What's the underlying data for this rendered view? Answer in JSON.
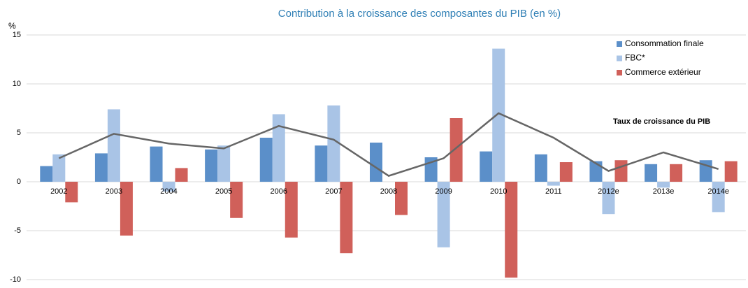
{
  "chart_data": {
    "type": "bar",
    "title": "Contribution à la croissance des composantes du PIB (en %)",
    "y_label": "%",
    "categories": [
      "2002",
      "2003",
      "2004",
      "2005",
      "2006",
      "2007",
      "2008",
      "2009",
      "2010",
      "2011",
      "2012e",
      "2013e",
      "2014e"
    ],
    "series": [
      {
        "name": "Consommation finale",
        "color": "#5b8fc9",
        "values": [
          1.6,
          2.9,
          3.6,
          3.3,
          4.5,
          3.7,
          4.0,
          2.5,
          3.1,
          2.8,
          2.1,
          1.8,
          2.2
        ]
      },
      {
        "name": "FBC*",
        "color": "#a9c4e6",
        "values": [
          2.8,
          7.4,
          -1.0,
          3.7,
          6.9,
          7.8,
          0,
          -6.7,
          13.6,
          -0.4,
          -3.3,
          -0.6,
          -3.1
        ]
      },
      {
        "name": "Commerce extérieur",
        "color": "#d0605a",
        "values": [
          -2.1,
          -5.5,
          1.4,
          -3.7,
          -5.7,
          -7.3,
          -3.4,
          6.5,
          -9.8,
          2.0,
          2.2,
          1.8,
          2.1
        ]
      }
    ],
    "line": {
      "name": "Taux de croissance du PIB",
      "color": "#666666",
      "values": [
        2.4,
        4.9,
        3.9,
        3.4,
        5.7,
        4.3,
        0.6,
        2.4,
        7.0,
        4.5,
        1.1,
        3.0,
        1.3
      ]
    },
    "ylim": [
      -10,
      15
    ],
    "yticks": [
      -10,
      -5,
      0,
      5,
      10,
      15
    ],
    "grid": true,
    "legend": "top-right"
  }
}
